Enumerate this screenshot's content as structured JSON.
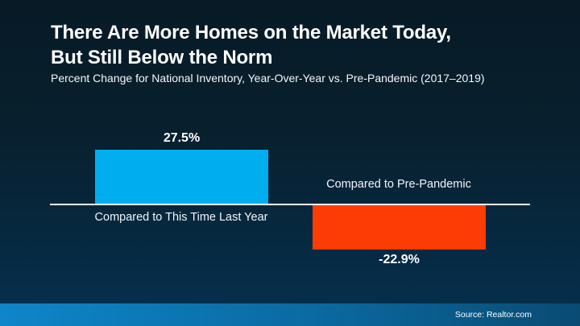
{
  "header": {
    "title_line1": "There Are More Homes on the Market Today,",
    "title_line2": "But Still Below the Norm",
    "subtitle": "Percent Change for National Inventory, Year-Over-Year vs. Pre-Pandemic (2017–2019)"
  },
  "footer": {
    "source": "Source: Realtor.com"
  },
  "chart_data": {
    "type": "bar",
    "title": "There Are More Homes on the Market Today, But Still Below the Norm",
    "subtitle": "Percent Change for National Inventory, Year-Over-Year vs. Pre-Pandemic (2017–2019)",
    "categories": [
      "Compared to This Time Last Year",
      "Compared to Pre-Pandemic"
    ],
    "values": [
      27.5,
      -22.9
    ],
    "value_labels": [
      "27.5%",
      "-22.9%"
    ],
    "colors": [
      "#00aeef",
      "#fc3c04"
    ],
    "xlabel": "",
    "ylabel": "",
    "ylim": [
      -30,
      35
    ],
    "grid": false,
    "legend": "none",
    "baseline_color": "#ffffff",
    "background_top": "#071a26",
    "background_bottom": "#053050",
    "footer_gradient_left": "#0e86c9",
    "footer_gradient_right": "#094b73",
    "source": "Source: Realtor.com"
  }
}
